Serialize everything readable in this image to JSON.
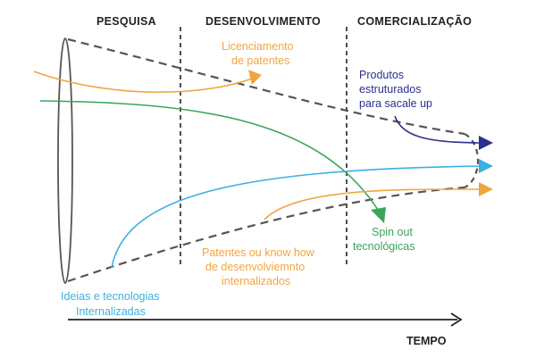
{
  "phases": [
    "PESQUISA",
    "DESENVOLVIMENTO",
    "COMERCIALIZAÇÃO"
  ],
  "labels": {
    "licensing_1": "Licenciamento",
    "licensing_2": "de patentes",
    "products_1": "Produtos",
    "products_2": "estruturados",
    "products_3": "para sacale up",
    "spinout_1": "Spin out",
    "spinout_2": "tecnológicas",
    "patents_1": "Patentes ou know how",
    "patents_2": "de desenvolviemnto",
    "patents_3": "internalizados",
    "ideas_1": "Ideias e tecnologias",
    "ideas_2": "Internalizadas"
  },
  "axis_label": "TEMPO",
  "colors": {
    "orange": "#f0a540",
    "navy": "#2b2f8f",
    "cyan": "#3bb0e0",
    "green": "#3aa55a",
    "dark": "#222222",
    "funnel": "#555555"
  }
}
